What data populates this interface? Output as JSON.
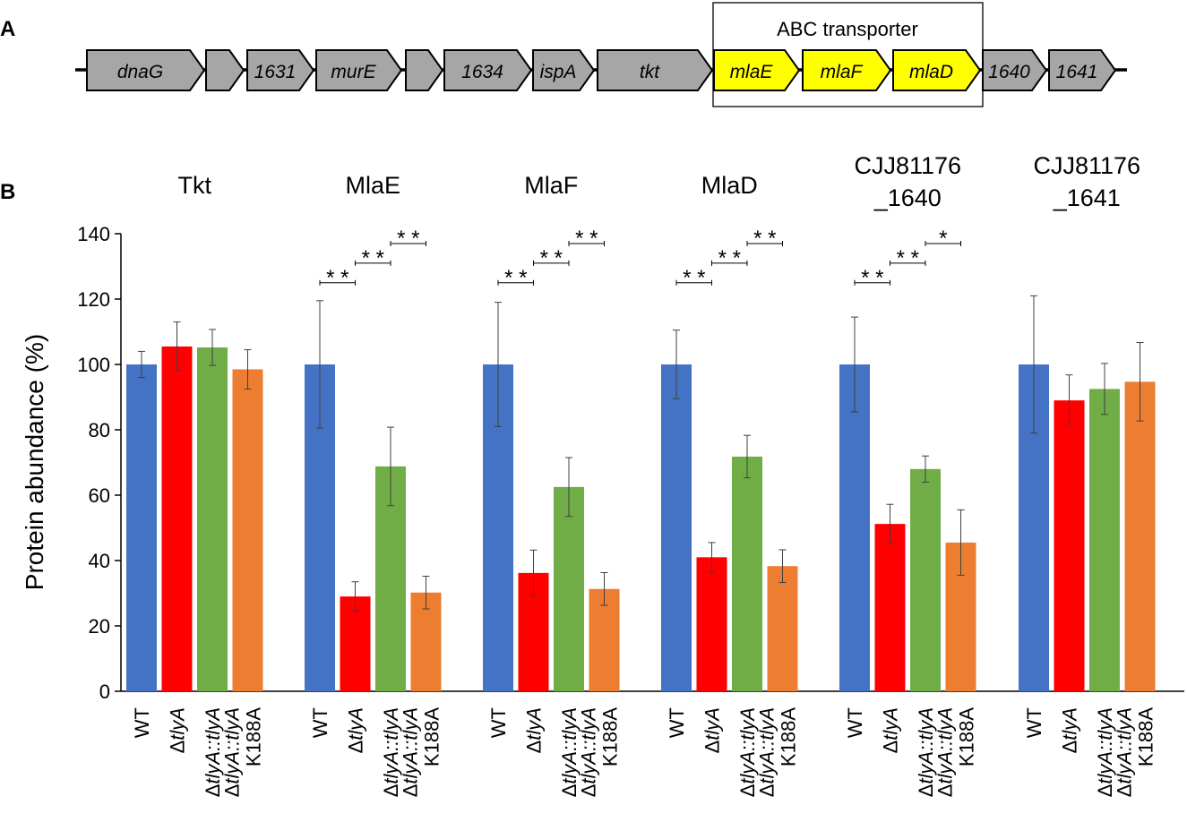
{
  "panel_labels": {
    "a": "A",
    "b": "B"
  },
  "operon": {
    "box_label": "ABC transporter",
    "genes": [
      {
        "label": "dnaG",
        "highlight": false
      },
      {
        "label": "",
        "highlight": false
      },
      {
        "label": "1631",
        "highlight": false
      },
      {
        "label": "murE",
        "highlight": false
      },
      {
        "label": "",
        "highlight": false
      },
      {
        "label": "1634",
        "highlight": false
      },
      {
        "label": "ispA",
        "highlight": false
      },
      {
        "label": "tkt",
        "highlight": false
      },
      {
        "label": "mlaE",
        "highlight": true
      },
      {
        "label": "mlaF",
        "highlight": true
      },
      {
        "label": "mlaD",
        "highlight": true
      },
      {
        "label": "1640",
        "highlight": false
      },
      {
        "label": "1641",
        "highlight": false
      }
    ],
    "colors": {
      "gene": "#a6a6a6",
      "highlight": "#ffff00",
      "stroke": "#000000"
    }
  },
  "chart_data": {
    "type": "bar",
    "ylabel": "Protein abundance (%)",
    "ylim": [
      0,
      140
    ],
    "yticks": [
      0,
      20,
      40,
      60,
      80,
      100,
      120,
      140
    ],
    "strain_labels": [
      {
        "plain": "WT",
        "italic": "",
        "line2": ""
      },
      {
        "plain": "Δ",
        "italic": "tlyA",
        "line2": ""
      },
      {
        "plain": "Δ",
        "italic": "tlyA::tlyA",
        "line2": ""
      },
      {
        "plain": "Δ",
        "italic": "tlyA::tlyA",
        "line2": "K188A"
      }
    ],
    "series_colors": [
      "#4472c4",
      "#ff0000",
      "#70ad47",
      "#ed7d31"
    ],
    "groups": [
      {
        "title": [
          "Tkt"
        ],
        "values": [
          100,
          105.5,
          105.2,
          98.5
        ],
        "errors": [
          4,
          7.5,
          5.5,
          6
        ],
        "significance": []
      },
      {
        "title": [
          "MlaE"
        ],
        "values": [
          100,
          29,
          68.8,
          30.2
        ],
        "errors": [
          19.5,
          4.5,
          12,
          5
        ],
        "significance": [
          {
            "pair": [
              0,
              1
            ],
            "label": "* *",
            "level": 125
          },
          {
            "pair": [
              1,
              2
            ],
            "label": "* *",
            "level": 131
          },
          {
            "pair": [
              2,
              3
            ],
            "label": "* *",
            "level": 137
          }
        ]
      },
      {
        "title": [
          "MlaF"
        ],
        "values": [
          100,
          36.2,
          62.5,
          31.3
        ],
        "errors": [
          19,
          7,
          9,
          5
        ],
        "significance": [
          {
            "pair": [
              0,
              1
            ],
            "label": "* *",
            "level": 125
          },
          {
            "pair": [
              1,
              2
            ],
            "label": "* *",
            "level": 131
          },
          {
            "pair": [
              2,
              3
            ],
            "label": "* *",
            "level": 137
          }
        ]
      },
      {
        "title": [
          "MlaD"
        ],
        "values": [
          100,
          41,
          71.8,
          38.3
        ],
        "errors": [
          10.5,
          4.5,
          6.5,
          5
        ],
        "significance": [
          {
            "pair": [
              0,
              1
            ],
            "label": "* *",
            "level": 125
          },
          {
            "pair": [
              1,
              2
            ],
            "label": "* *",
            "level": 131
          },
          {
            "pair": [
              2,
              3
            ],
            "label": "* *",
            "level": 137
          }
        ]
      },
      {
        "title": [
          "CJJ81176",
          "_1640"
        ],
        "values": [
          100,
          51.2,
          68,
          45.5
        ],
        "errors": [
          14.5,
          6,
          4,
          10
        ],
        "significance": [
          {
            "pair": [
              0,
              1
            ],
            "label": "* *",
            "level": 125
          },
          {
            "pair": [
              1,
              2
            ],
            "label": "* *",
            "level": 131
          },
          {
            "pair": [
              2,
              3
            ],
            "label": "*",
            "level": 137
          }
        ]
      },
      {
        "title": [
          "CJJ81176",
          "_1641"
        ],
        "values": [
          100,
          89,
          92.5,
          94.7
        ],
        "errors": [
          21,
          7.8,
          7.8,
          12
        ],
        "significance": []
      }
    ]
  }
}
